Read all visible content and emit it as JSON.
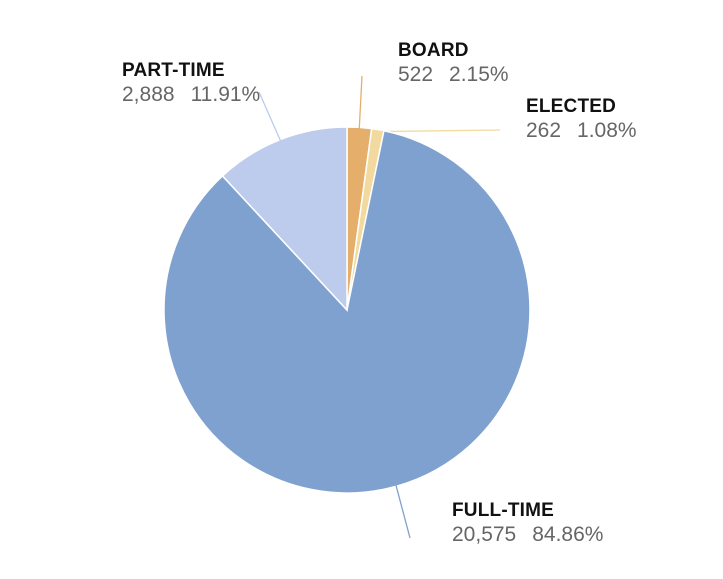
{
  "chart_data": {
    "type": "pie",
    "title": "",
    "slices": [
      {
        "label": "BOARD",
        "value": 522,
        "value_text": "522",
        "percent_text": "2.15%",
        "color": "#E5AE6A"
      },
      {
        "label": "ELECTED",
        "value": 262,
        "value_text": "262",
        "percent_text": "1.08%",
        "color": "#F2DA9F"
      },
      {
        "label": "FULL-TIME",
        "value": 20575,
        "value_text": "20,575",
        "percent_text": "84.86%",
        "color": "#7FA1CF"
      },
      {
        "label": "PART-TIME",
        "value": 2888,
        "value_text": "2,888",
        "percent_text": "11.91%",
        "color": "#BDCBEC"
      }
    ],
    "start_angle": "12 o'clock",
    "direction": "clockwise",
    "labels": "outside with leader lines"
  }
}
